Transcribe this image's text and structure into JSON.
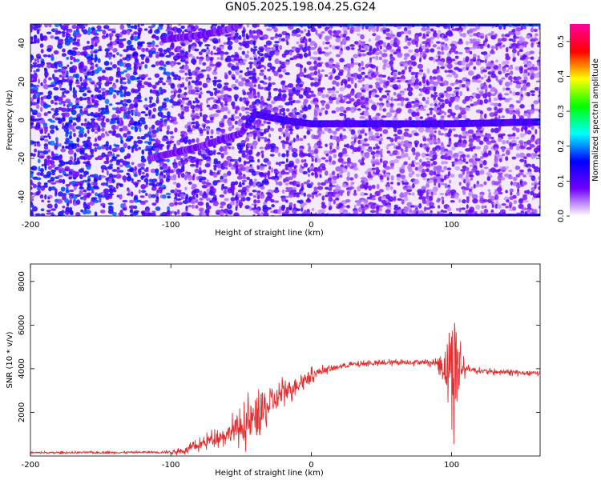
{
  "title": "GN05.2025.198.04.25.G24",
  "chart_data": [
    {
      "type": "heatmap",
      "xlabel": "Height of straight line (km)",
      "ylabel": "Frequency (Hz)",
      "xlim": [
        -200,
        163
      ],
      "ylim": [
        -50,
        50
      ],
      "x_ticks": [
        -200,
        -100,
        0,
        100
      ],
      "x_tick_labels": [
        "-200",
        "-100",
        "0",
        "100"
      ],
      "y_ticks": [
        -40,
        -20,
        0,
        20,
        40
      ],
      "y_tick_labels": [
        "-40",
        "-20",
        "0",
        "20",
        "40"
      ],
      "colorbar": {
        "label": "Normalized spectral amplitude",
        "range": [
          0,
          0.55
        ],
        "ticks": [
          0,
          0.1,
          0.2,
          0.3,
          0.4,
          0.5
        ],
        "tick_labels": [
          "0.0",
          "0.1",
          "0.2",
          "0.3",
          "0.4",
          "0.5"
        ],
        "colors": [
          "#ffffff",
          "#7000ff",
          "#0000ff",
          "#00ffff",
          "#00ff00",
          "#ffff00",
          "#ff0000",
          "#ff00a0"
        ]
      },
      "features": [
        {
          "desc": "main signal ridge",
          "x": [
            -115,
            -80,
            -50,
            -40,
            -20,
            0,
            50,
            100,
            163
          ],
          "y": [
            -20,
            -14,
            -7,
            3,
            0,
            -2,
            -2,
            -2,
            -1
          ]
        },
        {
          "desc": "upper aliased ridge",
          "x": [
            -105,
            -80,
            -60,
            -50
          ],
          "y": [
            42,
            44,
            47,
            50
          ]
        }
      ],
      "grid": false
    },
    {
      "type": "line",
      "xlabel": "Height of straight line (km)",
      "ylabel": "SNR (10 * v/v)",
      "xlim": [
        -200,
        163
      ],
      "ylim": [
        0,
        8800
      ],
      "x_ticks": [
        -200,
        -100,
        0,
        100
      ],
      "x_tick_labels": [
        "-200",
        "-100",
        "0",
        "100"
      ],
      "y_ticks": [
        2000,
        4000,
        6000,
        8000
      ],
      "y_tick_labels": [
        "2000",
        "4000",
        "6000",
        "8000"
      ],
      "series": [
        {
          "color": "#e03030",
          "x": [
            -200,
            -180,
            -160,
            -140,
            -120,
            -100,
            -90,
            -80,
            -70,
            -60,
            -55,
            -50,
            -45,
            -40,
            -35,
            -30,
            -25,
            -20,
            -15,
            -10,
            -5,
            0,
            5,
            10,
            15,
            20,
            25,
            30,
            35,
            40,
            50,
            60,
            70,
            80,
            90,
            95,
            100,
            102,
            104,
            106,
            110,
            120,
            130,
            140,
            150,
            163
          ],
          "y": [
            150,
            150,
            160,
            160,
            170,
            180,
            250,
            500,
            800,
            1000,
            1200,
            1300,
            1500,
            1700,
            2000,
            2300,
            2600,
            2900,
            3100,
            3300,
            3500,
            3700,
            3850,
            3950,
            4000,
            4100,
            4150,
            4200,
            4200,
            4250,
            4250,
            4300,
            4300,
            4300,
            4250,
            4100,
            4300,
            4200,
            4000,
            4100,
            4000,
            3900,
            3850,
            3850,
            3800,
            3800
          ],
          "noise": [
            60,
            60,
            60,
            60,
            60,
            100,
            200,
            300,
            400,
            500,
            800,
            800,
            1200,
            1500,
            1500,
            900,
            800,
            700,
            600,
            500,
            450,
            350,
            280,
            200,
            180,
            150,
            150,
            150,
            150,
            150,
            150,
            160,
            160,
            160,
            200,
            1500,
            2500,
            4000,
            3500,
            1500,
            200,
            150,
            150,
            150,
            150,
            150
          ]
        }
      ],
      "grid": false
    }
  ]
}
